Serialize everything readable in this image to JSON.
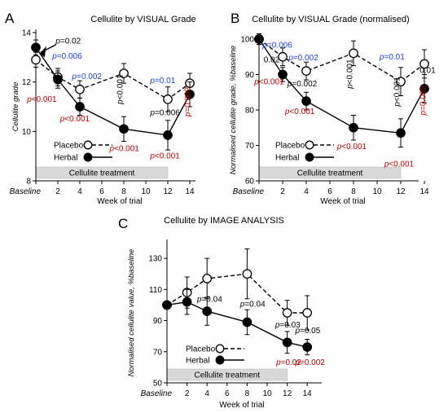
{
  "chart_data": [
    {
      "panel": "A",
      "type": "line",
      "title": "Cellulite by VISUAL Grade",
      "ylabel": "Cellulite grade",
      "xlabel": "Week of trial",
      "x_ticks": [
        "Baseline",
        "2",
        "4",
        "6",
        "8",
        "10",
        "12",
        "14"
      ],
      "x": [
        0,
        2,
        4,
        8,
        12,
        14
      ],
      "ylim": [
        8,
        14
      ],
      "y_ticks": [
        8,
        10,
        12,
        14
      ],
      "series": [
        {
          "name": "Placebo",
          "marker": "open",
          "line": "dashed",
          "values": [
            12.9,
            12.2,
            11.7,
            12.35,
            11.3,
            11.95
          ],
          "errors": [
            0.3,
            0.35,
            0.35,
            0.4,
            0.5,
            0.4
          ]
        },
        {
          "name": "Herbal",
          "marker": "filled",
          "line": "solid",
          "values": [
            13.4,
            12.1,
            11.0,
            10.1,
            9.85,
            11.5
          ],
          "errors": [
            0.3,
            0.35,
            0.35,
            0.5,
            0.6,
            0.5
          ]
        }
      ],
      "band_label": "Cellulite treatment",
      "band_range": [
        0,
        12
      ],
      "annotations": [
        {
          "text": "p=0.02",
          "x": 1.8,
          "y": 13.55,
          "color": "black",
          "style": "mixed"
        },
        {
          "text": "p=0.006",
          "x": 1.5,
          "y": 12.95,
          "color": "blue",
          "style": "mixed"
        },
        {
          "text": "p=0.002",
          "x": 3.3,
          "y": 12.12,
          "color": "blue",
          "style": "mixed"
        },
        {
          "text": "p<0.001",
          "x": -0.8,
          "y": 11.2,
          "color": "red",
          "style": "mixed"
        },
        {
          "text": "p<0.001",
          "x": 2.2,
          "y": 10.4,
          "color": "red",
          "style": "mixed"
        },
        {
          "text": "p<0.001",
          "x": 7.9,
          "y": 11.1,
          "color": "black",
          "style": "vertical"
        },
        {
          "text": "p<0.001",
          "x": 6.7,
          "y": 9.2,
          "color": "red",
          "style": "mixed"
        },
        {
          "text": "p=0.01",
          "x": 10.4,
          "y": 11.95,
          "color": "blue",
          "style": "mixed"
        },
        {
          "text": "p=0.006",
          "x": 10.4,
          "y": 10.65,
          "color": "black",
          "style": "mixed"
        },
        {
          "text": "p<0.001",
          "x": 10.4,
          "y": 8.9,
          "color": "red",
          "style": "mixed"
        },
        {
          "text": "p=0.002",
          "x": 14.05,
          "y": 10.6,
          "color": "red",
          "style": "vertical"
        }
      ],
      "legend": [
        {
          "label": "Placebo"
        },
        {
          "label": "Herbal"
        }
      ]
    },
    {
      "panel": "B",
      "type": "line",
      "title": "Cellulite by VISUAL Grade (normalised)",
      "ylabel": "Normalised cellulite grade, %baseline",
      "xlabel": "Week of trial",
      "x_ticks": [
        "Baseline",
        "2",
        "4",
        "6",
        "8",
        "10",
        "12",
        "14"
      ],
      "x": [
        0,
        2,
        4,
        8,
        12,
        14
      ],
      "ylim": [
        60,
        100
      ],
      "y_ticks": [
        60,
        70,
        80,
        90,
        100
      ],
      "series": [
        {
          "name": "Placebo",
          "marker": "open",
          "line": "dashed",
          "values": [
            100,
            95,
            91,
            96,
            88,
            93
          ],
          "errors": [
            1.5,
            2.5,
            2.5,
            3.5,
            4,
            4
          ]
        },
        {
          "name": "Herbal",
          "marker": "filled",
          "line": "solid",
          "values": [
            100,
            90,
            82.5,
            75,
            73.5,
            86
          ],
          "errors": [
            1.5,
            2,
            2.5,
            3.5,
            4,
            4
          ]
        }
      ],
      "band_label": "Cellulite treatment",
      "band_range": [
        0,
        12
      ],
      "annotations": [
        {
          "text": "p=0.006",
          "x": 0.3,
          "y": 97.6,
          "color": "blue",
          "style": "mixed"
        },
        {
          "text": "0.02",
          "x": 0.4,
          "y": 93.5,
          "color": "black",
          "style": "mixed"
        },
        {
          "text": "p=0.002",
          "x": 2.5,
          "y": 94.0,
          "color": "blue",
          "style": "mixed"
        },
        {
          "text": "p<0.001",
          "x": -0.4,
          "y": 87.2,
          "color": "red",
          "style": "mixed"
        },
        {
          "text": "p=0.002",
          "x": 2.4,
          "y": 86.7,
          "color": "black",
          "style": "mixed"
        },
        {
          "text": "p<0.001",
          "x": 2.2,
          "y": 78.8,
          "color": "red",
          "style": "mixed"
        },
        {
          "text": "p<0.001",
          "x": 7.9,
          "y": 86.0,
          "color": "black",
          "style": "vertical"
        },
        {
          "text": "p<0.001",
          "x": 6.6,
          "y": 69.0,
          "color": "red",
          "style": "mixed"
        },
        {
          "text": "p=0.01",
          "x": 10.2,
          "y": 94.2,
          "color": "blue",
          "style": "mixed"
        },
        {
          "text": "p<0.001",
          "x": 11.9,
          "y": 81.0,
          "color": "black",
          "style": "vertical"
        },
        {
          "text": "p<0.001",
          "x": 10.6,
          "y": 64.0,
          "color": "red",
          "style": "mixed"
        },
        {
          "text": "0.01",
          "x": 13.6,
          "y": 90.5,
          "color": "black",
          "style": "mixed"
        },
        {
          "text": "p=0.002",
          "x": 14.1,
          "y": 78.5,
          "color": "red",
          "style": "vertical"
        }
      ],
      "legend": [
        {
          "label": "Placebo"
        },
        {
          "label": "Herbal"
        }
      ]
    },
    {
      "panel": "C",
      "type": "line",
      "title": "Cellulite by IMAGE ANALYSIS",
      "ylabel": "Normalised cellulite value, %baseline",
      "xlabel": "Week of trial",
      "x_ticks": [
        "Baseline",
        "2",
        "4",
        "6",
        "8",
        "10",
        "12",
        "14"
      ],
      "x": [
        0,
        2,
        4,
        8,
        12,
        14
      ],
      "ylim": [
        50,
        140
      ],
      "y_ticks": [
        50,
        70,
        90,
        110,
        130
      ],
      "series": [
        {
          "name": "Placebo",
          "marker": "open",
          "line": "dashed",
          "values": [
            100,
            108,
            117,
            120,
            95,
            95
          ],
          "errors": [
            2,
            10,
            13,
            16,
            8,
            11
          ]
        },
        {
          "name": "Herbal",
          "marker": "filled",
          "line": "solid",
          "values": [
            100,
            102,
            96,
            89,
            76,
            73
          ],
          "errors": [
            2,
            8,
            9,
            8,
            7,
            5
          ]
        }
      ],
      "band_label": "Cellulite treatment",
      "band_range": [
        0,
        12
      ],
      "annotations": [
        {
          "text": "p=0.04",
          "x": 3.0,
          "y": 102.0,
          "color": "black",
          "style": "mixed"
        },
        {
          "text": "p=0.04",
          "x": 7.3,
          "y": 99.0,
          "color": "black",
          "style": "mixed"
        },
        {
          "text": "p=0.03",
          "x": 10.8,
          "y": 85.5,
          "color": "black",
          "style": "mixed"
        },
        {
          "text": "p=0.05",
          "x": 12.8,
          "y": 82.0,
          "color": "black",
          "style": "mixed"
        },
        {
          "text": "p=0.02",
          "x": 10.9,
          "y": 61.5,
          "color": "red",
          "style": "mixed"
        },
        {
          "text": "p=0.002",
          "x": 12.8,
          "y": 61.5,
          "color": "red",
          "style": "mixed"
        }
      ],
      "legend": [
        {
          "label": "Placebo"
        },
        {
          "label": "Herbal"
        }
      ]
    }
  ],
  "colors": {
    "blue": "#1f3fd6",
    "red": "#c00000",
    "band_fill": "#d9d9d9",
    "black": "#000000"
  }
}
